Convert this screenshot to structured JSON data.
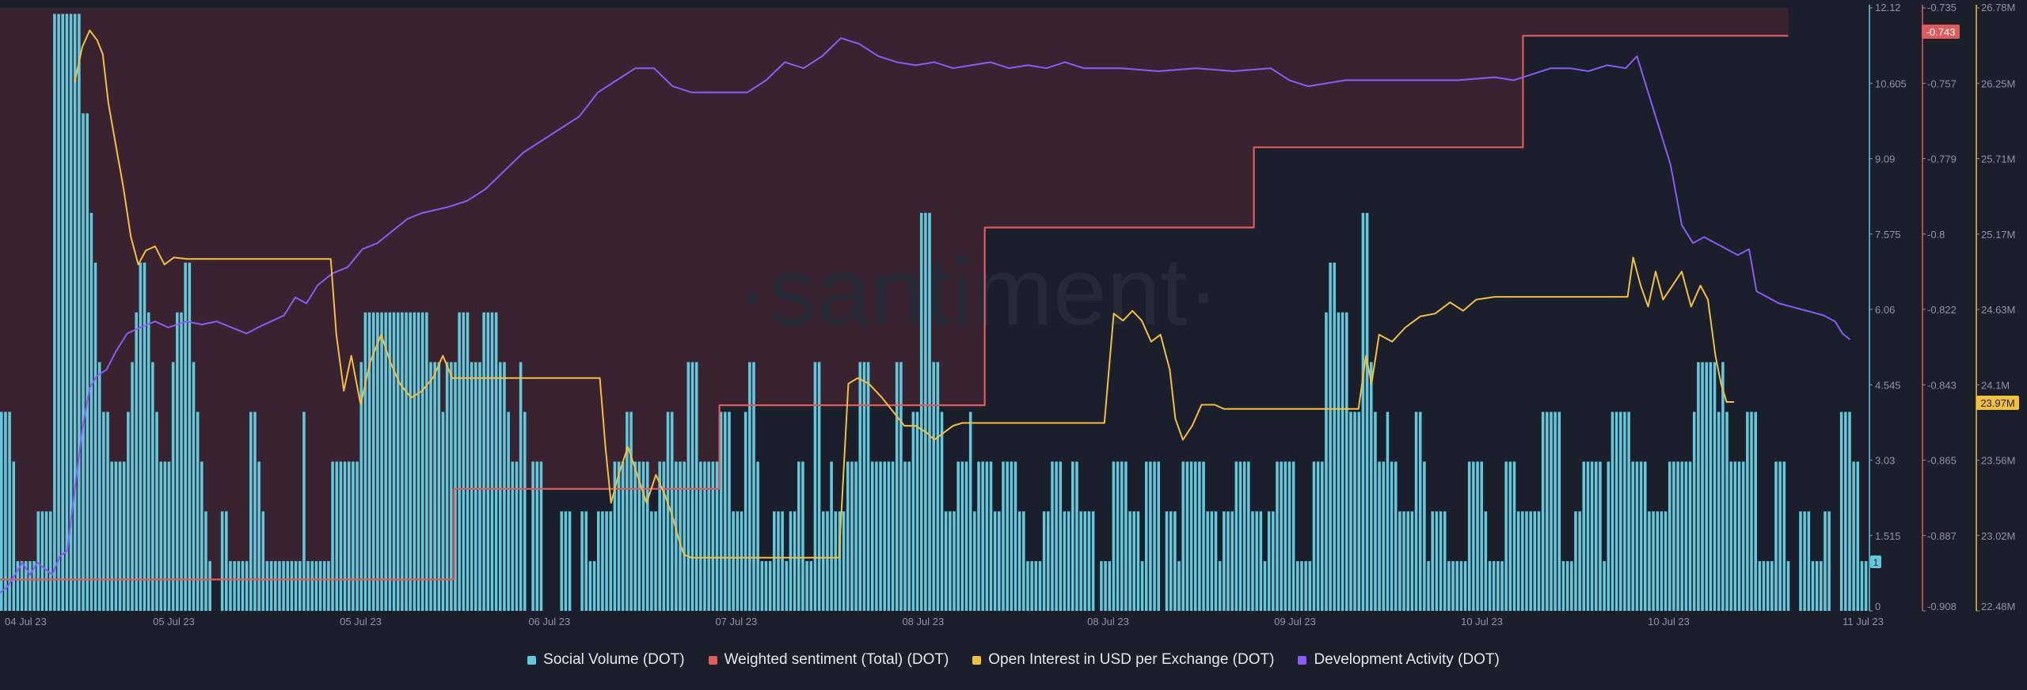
{
  "watermark": "·santiment·",
  "legend": {
    "social_volume": "Social Volume (DOT)",
    "weighted_sentiment": "Weighted sentiment (Total) (DOT)",
    "open_interest": "Open Interest in USD per Exchange (DOT)",
    "dev_activity": "Development Activity (DOT)"
  },
  "colors": {
    "background": "#1b1e2b",
    "negative_zone": "#3a2330",
    "social_volume": "#62c8dc",
    "weighted_sentiment": "#e05b5b",
    "open_interest": "#f2bf41",
    "dev_activity": "#8a5cf5",
    "tick_text": "#8f94a5"
  },
  "badges": {
    "weighted_sentiment_last": "-0.743",
    "open_interest_last": "23.97M",
    "social_volume_last": "1"
  },
  "chart_data": {
    "type": "bar",
    "x_tick_labels": [
      "04 Jul 23",
      "05 Jul 23",
      "05 Jul 23",
      "06 Jul 23",
      "07 Jul 23",
      "08 Jul 23",
      "08 Jul 23",
      "09 Jul 23",
      "10 Jul 23",
      "10 Jul 23",
      "11 Jul 23"
    ],
    "axes": {
      "social_volume": {
        "range": [
          0,
          12.12
        ],
        "ticks": [
          "0",
          "1.515",
          "3.03",
          "4.545",
          "6.06",
          "7.575",
          "9.09",
          "10.605",
          "12.12"
        ]
      },
      "weighted_sentiment": {
        "range": [
          -0.908,
          -0.735
        ],
        "ticks": [
          "-0.908",
          "-0.887",
          "-0.865",
          "-0.843",
          "-0.822",
          "-0.8",
          "-0.779",
          "-0.757",
          "-0.735"
        ]
      },
      "open_interest": {
        "range": [
          22.48,
          26.78
        ],
        "unit": "M",
        "ticks": [
          "22.48M",
          "23.02M",
          "23.56M",
          "24.1M",
          "24.63M",
          "25.17M",
          "25.71M",
          "26.25M",
          "26.78M"
        ]
      }
    },
    "social_volume": [
      4,
      4,
      4,
      3,
      1,
      1,
      1,
      1,
      1,
      2,
      2,
      2,
      2,
      12,
      12,
      12,
      12,
      12,
      12,
      12,
      10,
      10,
      8,
      7,
      5,
      4,
      4,
      3,
      3,
      3,
      3,
      4,
      5,
      6,
      7,
      7,
      6,
      5,
      4,
      3,
      3,
      3,
      5,
      6,
      6,
      7,
      7,
      5,
      4,
      3,
      2,
      1,
      0,
      0,
      2,
      2,
      1,
      1,
      1,
      1,
      1,
      4,
      4,
      3,
      2,
      1,
      1,
      1,
      1,
      1,
      1,
      1,
      1,
      1,
      4,
      1,
      1,
      1,
      1,
      1,
      1,
      3,
      3,
      3,
      3,
      3,
      3,
      3,
      5,
      6,
      6,
      6,
      6,
      6,
      6,
      6,
      6,
      6,
      6,
      6,
      6,
      6,
      6,
      6,
      6,
      5,
      5,
      5,
      4,
      5,
      5,
      5,
      6,
      6,
      6,
      5,
      5,
      5,
      6,
      6,
      6,
      6,
      5,
      5,
      4,
      3,
      3,
      5,
      4,
      0,
      3,
      3,
      3,
      0,
      0,
      0,
      0,
      2,
      2,
      2,
      0,
      0,
      2,
      2,
      1,
      1,
      2,
      2,
      2,
      2,
      3,
      3,
      3,
      4,
      4,
      3,
      3,
      3,
      3,
      2,
      2,
      3,
      3,
      4,
      4,
      3,
      3,
      3,
      5,
      5,
      5,
      3,
      3,
      3,
      3,
      3,
      4,
      4,
      4,
      2,
      2,
      2,
      4,
      5,
      5,
      3,
      1,
      1,
      1,
      2,
      2,
      2,
      1,
      2,
      2,
      3,
      3,
      1,
      1,
      5,
      5,
      2,
      2,
      3,
      2,
      2,
      2,
      3,
      3,
      3,
      5,
      5,
      5,
      3,
      3,
      3,
      3,
      3,
      3,
      5,
      5,
      3,
      3,
      4,
      4,
      8,
      8,
      8,
      5,
      5,
      4,
      2,
      2,
      2,
      3,
      3,
      3,
      4,
      2,
      3,
      3,
      3,
      3,
      2,
      2,
      3,
      3,
      3,
      3,
      2,
      2,
      1,
      1,
      1,
      1,
      2,
      2,
      3,
      3,
      3,
      2,
      2,
      3,
      3,
      2,
      2,
      2,
      2,
      0,
      1,
      1,
      1,
      3,
      3,
      3,
      3,
      2,
      2,
      2,
      1,
      3,
      3,
      3,
      3,
      0,
      2,
      2,
      2,
      1,
      3,
      3,
      3,
      3,
      3,
      3,
      2,
      2,
      2,
      1,
      2,
      2,
      2,
      3,
      3,
      3,
      3,
      2,
      2,
      2,
      1,
      2,
      2,
      3,
      3,
      3,
      3,
      3,
      1,
      1,
      1,
      1,
      3,
      3,
      3,
      6,
      7,
      7,
      6,
      6,
      6,
      4,
      4,
      4,
      8,
      8,
      5,
      4,
      3,
      3,
      4,
      3,
      3,
      2,
      2,
      2,
      2,
      4,
      4,
      3,
      1,
      2,
      2,
      2,
      2,
      1,
      1,
      1,
      1,
      1,
      3,
      3,
      3,
      3,
      2,
      1,
      1,
      1,
      1,
      3,
      3,
      3,
      2,
      2,
      2,
      2,
      2,
      2,
      4,
      4,
      4,
      4,
      4,
      1,
      1,
      1,
      2,
      2,
      3,
      3,
      3,
      3,
      3,
      1,
      3,
      4,
      4,
      4,
      4,
      4,
      3,
      3,
      3,
      3,
      2,
      2,
      2,
      2,
      2,
      3,
      3,
      3,
      3,
      3,
      3,
      4,
      5,
      5,
      5,
      5,
      5,
      4,
      5,
      4,
      3,
      3,
      3,
      3,
      4,
      4,
      4,
      1,
      1,
      1,
      1,
      3,
      3,
      3,
      1,
      0,
      0,
      2,
      2,
      2,
      1,
      1,
      1,
      2,
      2,
      0,
      0,
      4,
      4,
      4,
      3,
      3,
      1,
      1
    ],
    "weighted_sentiment": [
      {
        "x": 0,
        "y": -0.899
      },
      {
        "x": 0.243,
        "y": -0.899
      },
      {
        "x": 0.243,
        "y": -0.873
      },
      {
        "x": 0.385,
        "y": -0.873
      },
      {
        "x": 0.385,
        "y": -0.849
      },
      {
        "x": 0.527,
        "y": -0.849
      },
      {
        "x": 0.527,
        "y": -0.798
      },
      {
        "x": 0.671,
        "y": -0.798
      },
      {
        "x": 0.671,
        "y": -0.775
      },
      {
        "x": 0.815,
        "y": -0.775
      },
      {
        "x": 0.815,
        "y": -0.743
      },
      {
        "x": 0.957,
        "y": -0.743
      }
    ],
    "open_interest": [
      {
        "x": 0.04,
        "y": 26.25
      },
      {
        "x": 0.044,
        "y": 26.5
      },
      {
        "x": 0.048,
        "y": 26.62
      },
      {
        "x": 0.052,
        "y": 26.55
      },
      {
        "x": 0.055,
        "y": 26.45
      },
      {
        "x": 0.058,
        "y": 26.1
      },
      {
        "x": 0.062,
        "y": 25.8
      },
      {
        "x": 0.066,
        "y": 25.5
      },
      {
        "x": 0.07,
        "y": 25.15
      },
      {
        "x": 0.074,
        "y": 24.95
      },
      {
        "x": 0.078,
        "y": 25.05
      },
      {
        "x": 0.083,
        "y": 25.08
      },
      {
        "x": 0.088,
        "y": 24.95
      },
      {
        "x": 0.093,
        "y": 25.0
      },
      {
        "x": 0.1,
        "y": 24.99
      },
      {
        "x": 0.177,
        "y": 24.99
      },
      {
        "x": 0.18,
        "y": 24.45
      },
      {
        "x": 0.184,
        "y": 24.05
      },
      {
        "x": 0.188,
        "y": 24.3
      },
      {
        "x": 0.193,
        "y": 23.95
      },
      {
        "x": 0.198,
        "y": 24.25
      },
      {
        "x": 0.204,
        "y": 24.45
      },
      {
        "x": 0.209,
        "y": 24.25
      },
      {
        "x": 0.214,
        "y": 24.1
      },
      {
        "x": 0.22,
        "y": 24.0
      },
      {
        "x": 0.226,
        "y": 24.05
      },
      {
        "x": 0.232,
        "y": 24.15
      },
      {
        "x": 0.237,
        "y": 24.3
      },
      {
        "x": 0.242,
        "y": 24.14
      },
      {
        "x": 0.321,
        "y": 24.14
      },
      {
        "x": 0.324,
        "y": 23.65
      },
      {
        "x": 0.327,
        "y": 23.25
      },
      {
        "x": 0.331,
        "y": 23.45
      },
      {
        "x": 0.336,
        "y": 23.65
      },
      {
        "x": 0.341,
        "y": 23.45
      },
      {
        "x": 0.346,
        "y": 23.25
      },
      {
        "x": 0.351,
        "y": 23.45
      },
      {
        "x": 0.356,
        "y": 23.3
      },
      {
        "x": 0.36,
        "y": 23.15
      },
      {
        "x": 0.363,
        "y": 23.0
      },
      {
        "x": 0.366,
        "y": 22.88
      },
      {
        "x": 0.37,
        "y": 22.86
      },
      {
        "x": 0.384,
        "y": 22.86
      },
      {
        "x": 0.449,
        "y": 22.86
      },
      {
        "x": 0.454,
        "y": 24.1
      },
      {
        "x": 0.459,
        "y": 24.14
      },
      {
        "x": 0.465,
        "y": 24.1
      },
      {
        "x": 0.472,
        "y": 24.0
      },
      {
        "x": 0.478,
        "y": 23.9
      },
      {
        "x": 0.484,
        "y": 23.8
      },
      {
        "x": 0.49,
        "y": 23.8
      },
      {
        "x": 0.496,
        "y": 23.75
      },
      {
        "x": 0.5,
        "y": 23.7
      },
      {
        "x": 0.505,
        "y": 23.75
      },
      {
        "x": 0.51,
        "y": 23.8
      },
      {
        "x": 0.515,
        "y": 23.82
      },
      {
        "x": 0.591,
        "y": 23.82
      },
      {
        "x": 0.596,
        "y": 24.6
      },
      {
        "x": 0.601,
        "y": 24.55
      },
      {
        "x": 0.606,
        "y": 24.62
      },
      {
        "x": 0.611,
        "y": 24.55
      },
      {
        "x": 0.616,
        "y": 24.4
      },
      {
        "x": 0.621,
        "y": 24.45
      },
      {
        "x": 0.626,
        "y": 24.2
      },
      {
        "x": 0.629,
        "y": 23.85
      },
      {
        "x": 0.633,
        "y": 23.7
      },
      {
        "x": 0.638,
        "y": 23.8
      },
      {
        "x": 0.643,
        "y": 23.95
      },
      {
        "x": 0.65,
        "y": 23.95
      },
      {
        "x": 0.655,
        "y": 23.92
      },
      {
        "x": 0.727,
        "y": 23.92
      },
      {
        "x": 0.731,
        "y": 24.3
      },
      {
        "x": 0.734,
        "y": 24.1
      },
      {
        "x": 0.738,
        "y": 24.45
      },
      {
        "x": 0.745,
        "y": 24.4
      },
      {
        "x": 0.752,
        "y": 24.5
      },
      {
        "x": 0.76,
        "y": 24.58
      },
      {
        "x": 0.768,
        "y": 24.6
      },
      {
        "x": 0.776,
        "y": 24.68
      },
      {
        "x": 0.783,
        "y": 24.62
      },
      {
        "x": 0.79,
        "y": 24.7
      },
      {
        "x": 0.8,
        "y": 24.72
      },
      {
        "x": 0.871,
        "y": 24.72
      },
      {
        "x": 0.874,
        "y": 25.0
      },
      {
        "x": 0.878,
        "y": 24.8
      },
      {
        "x": 0.882,
        "y": 24.65
      },
      {
        "x": 0.886,
        "y": 24.9
      },
      {
        "x": 0.89,
        "y": 24.7
      },
      {
        "x": 0.895,
        "y": 24.8
      },
      {
        "x": 0.9,
        "y": 24.9
      },
      {
        "x": 0.905,
        "y": 24.65
      },
      {
        "x": 0.91,
        "y": 24.8
      },
      {
        "x": 0.914,
        "y": 24.7
      },
      {
        "x": 0.918,
        "y": 24.3
      },
      {
        "x": 0.921,
        "y": 24.1
      },
      {
        "x": 0.924,
        "y": 23.97
      },
      {
        "x": 0.928,
        "y": 23.97
      }
    ],
    "dev_activity": [
      {
        "x": 0.0,
        "y": 0.03
      },
      {
        "x": 0.004,
        "y": 0.04
      },
      {
        "x": 0.008,
        "y": 0.06
      },
      {
        "x": 0.012,
        "y": 0.08
      },
      {
        "x": 0.016,
        "y": 0.06
      },
      {
        "x": 0.02,
        "y": 0.08
      },
      {
        "x": 0.024,
        "y": 0.07
      },
      {
        "x": 0.028,
        "y": 0.06
      },
      {
        "x": 0.032,
        "y": 0.09
      },
      {
        "x": 0.036,
        "y": 0.1
      },
      {
        "x": 0.04,
        "y": 0.2
      },
      {
        "x": 0.044,
        "y": 0.3
      },
      {
        "x": 0.048,
        "y": 0.37
      },
      {
        "x": 0.052,
        "y": 0.39
      },
      {
        "x": 0.057,
        "y": 0.4
      },
      {
        "x": 0.062,
        "y": 0.43
      },
      {
        "x": 0.068,
        "y": 0.46
      },
      {
        "x": 0.075,
        "y": 0.47
      },
      {
        "x": 0.083,
        "y": 0.48
      },
      {
        "x": 0.09,
        "y": 0.47
      },
      {
        "x": 0.1,
        "y": 0.48
      },
      {
        "x": 0.108,
        "y": 0.475
      },
      {
        "x": 0.116,
        "y": 0.48
      },
      {
        "x": 0.124,
        "y": 0.47
      },
      {
        "x": 0.132,
        "y": 0.46
      },
      {
        "x": 0.138,
        "y": 0.47
      },
      {
        "x": 0.145,
        "y": 0.48
      },
      {
        "x": 0.152,
        "y": 0.49
      },
      {
        "x": 0.158,
        "y": 0.52
      },
      {
        "x": 0.164,
        "y": 0.51
      },
      {
        "x": 0.17,
        "y": 0.54
      },
      {
        "x": 0.178,
        "y": 0.56
      },
      {
        "x": 0.186,
        "y": 0.57
      },
      {
        "x": 0.194,
        "y": 0.6
      },
      {
        "x": 0.202,
        "y": 0.61
      },
      {
        "x": 0.21,
        "y": 0.63
      },
      {
        "x": 0.218,
        "y": 0.65
      },
      {
        "x": 0.226,
        "y": 0.66
      },
      {
        "x": 0.24,
        "y": 0.67
      },
      {
        "x": 0.25,
        "y": 0.68
      },
      {
        "x": 0.26,
        "y": 0.7
      },
      {
        "x": 0.27,
        "y": 0.73
      },
      {
        "x": 0.28,
        "y": 0.76
      },
      {
        "x": 0.29,
        "y": 0.78
      },
      {
        "x": 0.3,
        "y": 0.8
      },
      {
        "x": 0.31,
        "y": 0.82
      },
      {
        "x": 0.32,
        "y": 0.86
      },
      {
        "x": 0.33,
        "y": 0.88
      },
      {
        "x": 0.34,
        "y": 0.9
      },
      {
        "x": 0.35,
        "y": 0.9
      },
      {
        "x": 0.36,
        "y": 0.87
      },
      {
        "x": 0.37,
        "y": 0.86
      },
      {
        "x": 0.39,
        "y": 0.86
      },
      {
        "x": 0.4,
        "y": 0.86
      },
      {
        "x": 0.41,
        "y": 0.88
      },
      {
        "x": 0.42,
        "y": 0.91
      },
      {
        "x": 0.43,
        "y": 0.9
      },
      {
        "x": 0.44,
        "y": 0.92
      },
      {
        "x": 0.45,
        "y": 0.95
      },
      {
        "x": 0.46,
        "y": 0.94
      },
      {
        "x": 0.47,
        "y": 0.92
      },
      {
        "x": 0.48,
        "y": 0.91
      },
      {
        "x": 0.49,
        "y": 0.905
      },
      {
        "x": 0.5,
        "y": 0.91
      },
      {
        "x": 0.51,
        "y": 0.9
      },
      {
        "x": 0.52,
        "y": 0.905
      },
      {
        "x": 0.53,
        "y": 0.91
      },
      {
        "x": 0.54,
        "y": 0.9
      },
      {
        "x": 0.55,
        "y": 0.905
      },
      {
        "x": 0.56,
        "y": 0.9
      },
      {
        "x": 0.57,
        "y": 0.91
      },
      {
        "x": 0.58,
        "y": 0.9
      },
      {
        "x": 0.6,
        "y": 0.9
      },
      {
        "x": 0.62,
        "y": 0.895
      },
      {
        "x": 0.64,
        "y": 0.9
      },
      {
        "x": 0.66,
        "y": 0.895
      },
      {
        "x": 0.68,
        "y": 0.9
      },
      {
        "x": 0.69,
        "y": 0.88
      },
      {
        "x": 0.7,
        "y": 0.87
      },
      {
        "x": 0.72,
        "y": 0.88
      },
      {
        "x": 0.74,
        "y": 0.88
      },
      {
        "x": 0.76,
        "y": 0.88
      },
      {
        "x": 0.78,
        "y": 0.88
      },
      {
        "x": 0.8,
        "y": 0.885
      },
      {
        "x": 0.81,
        "y": 0.88
      },
      {
        "x": 0.82,
        "y": 0.89
      },
      {
        "x": 0.83,
        "y": 0.9
      },
      {
        "x": 0.84,
        "y": 0.9
      },
      {
        "x": 0.85,
        "y": 0.895
      },
      {
        "x": 0.86,
        "y": 0.905
      },
      {
        "x": 0.87,
        "y": 0.9
      },
      {
        "x": 0.876,
        "y": 0.92
      },
      {
        "x": 0.882,
        "y": 0.86
      },
      {
        "x": 0.888,
        "y": 0.8
      },
      {
        "x": 0.894,
        "y": 0.74
      },
      {
        "x": 0.9,
        "y": 0.64
      },
      {
        "x": 0.906,
        "y": 0.61
      },
      {
        "x": 0.912,
        "y": 0.62
      },
      {
        "x": 0.918,
        "y": 0.61
      },
      {
        "x": 0.924,
        "y": 0.6
      },
      {
        "x": 0.93,
        "y": 0.59
      },
      {
        "x": 0.936,
        "y": 0.6
      },
      {
        "x": 0.94,
        "y": 0.53
      },
      {
        "x": 0.946,
        "y": 0.52
      },
      {
        "x": 0.952,
        "y": 0.51
      },
      {
        "x": 0.958,
        "y": 0.505
      },
      {
        "x": 0.964,
        "y": 0.5
      },
      {
        "x": 0.97,
        "y": 0.495
      },
      {
        "x": 0.976,
        "y": 0.49
      },
      {
        "x": 0.982,
        "y": 0.48
      },
      {
        "x": 0.986,
        "y": 0.46
      },
      {
        "x": 0.99,
        "y": 0.45
      }
    ],
    "grid": false,
    "legend_position": "bottom"
  }
}
